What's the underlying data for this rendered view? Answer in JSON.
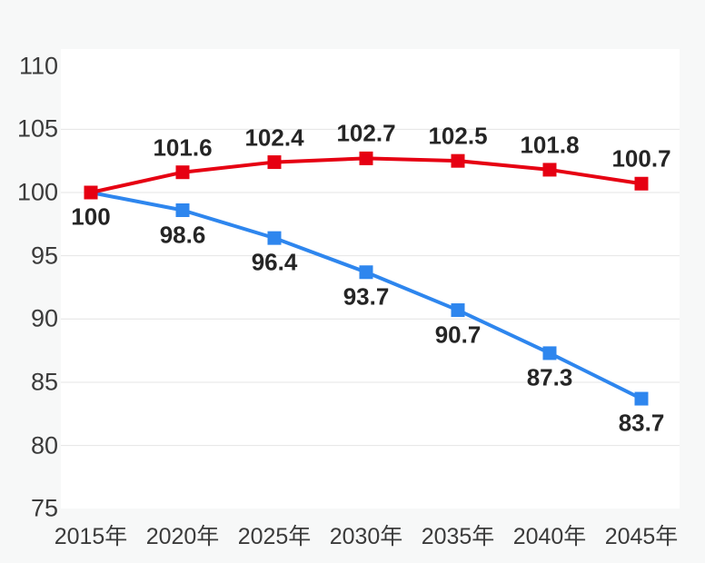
{
  "chart_data": {
    "type": "line",
    "title": "",
    "categories": [
      "2015年",
      "2020年",
      "2025年",
      "2030年",
      "2035年",
      "2040年",
      "2045年"
    ],
    "series": [
      {
        "name": "blue-series",
        "color": "#2e86ee",
        "marker": "square",
        "label_position": "below",
        "values": [
          100,
          98.6,
          96.4,
          93.7,
          90.7,
          87.3,
          83.7
        ],
        "labels": [
          "100",
          "98.6",
          "96.4",
          "93.7",
          "90.7",
          "87.3",
          "83.7"
        ]
      },
      {
        "name": "red-series",
        "color": "#e60012",
        "marker": "square",
        "label_position": "above",
        "values": [
          100,
          101.6,
          102.4,
          102.7,
          102.5,
          101.8,
          100.7
        ],
        "labels": [
          "",
          "101.6",
          "102.4",
          "102.7",
          "102.5",
          "101.8",
          "100.7"
        ]
      }
    ],
    "y_axis": {
      "min": 75,
      "max": 110,
      "tick_values": [
        110,
        105,
        100,
        95,
        90,
        85,
        80,
        75
      ],
      "tick_labels": [
        "110",
        "105",
        "100",
        "95",
        "90",
        "85",
        "80",
        "75"
      ],
      "gridline_values": [
        105,
        100,
        95,
        90,
        85,
        80
      ]
    },
    "x_axis": {
      "tick_labels": [
        "2015年",
        "2020年",
        "2025年",
        "2030年",
        "2035年",
        "2040年",
        "2045年"
      ]
    },
    "legend": "none",
    "grid": "horizontal",
    "colors": {
      "page_background": "#f7f8f8",
      "plot_background": "#ffffff",
      "gridline": "#e4e4e4",
      "axis_text": "#3b3b3b",
      "data_label_text": "#252525",
      "series_red": "#e60012",
      "series_blue": "#2e86ee"
    }
  }
}
